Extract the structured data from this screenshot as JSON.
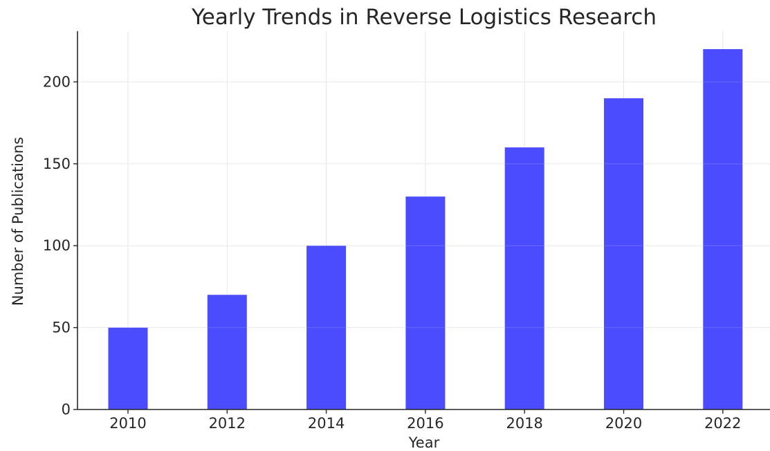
{
  "chart_data": {
    "type": "bar",
    "title": "Yearly Trends in Reverse Logistics Research",
    "xlabel": "Year",
    "ylabel": "Number of Publications",
    "categories": [
      "2010",
      "2012",
      "2014",
      "2016",
      "2018",
      "2020",
      "2022"
    ],
    "values": [
      50,
      70,
      100,
      130,
      160,
      190,
      220
    ],
    "ylim": [
      0,
      231
    ],
    "yticks": [
      0,
      50,
      100,
      150,
      200
    ],
    "grid": true,
    "bar_color": "#4b4bff",
    "legend": "none"
  }
}
